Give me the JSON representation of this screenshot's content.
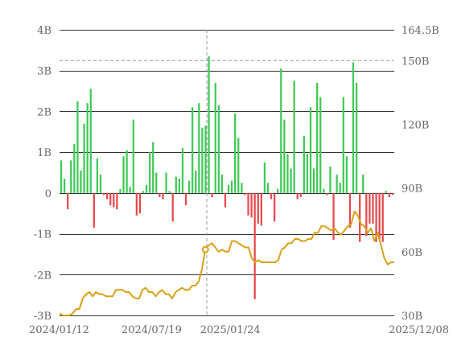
{
  "chart_data": {
    "type": "bar",
    "left_axis": {
      "ticks": [
        -3,
        -2,
        -1,
        0,
        1,
        2,
        3,
        4
      ],
      "tick_labels": [
        "-3B",
        "-2B",
        "-1B",
        "0",
        "1B",
        "2B",
        "3B",
        "4B"
      ],
      "ylim": [
        -3,
        4
      ]
    },
    "right_axis": {
      "ticks": [
        30,
        60,
        90,
        120,
        150,
        164.5
      ],
      "tick_labels": [
        "30B",
        "60B",
        "90B",
        "120B",
        "150B",
        "164.5B"
      ],
      "ylim": [
        30,
        164.5
      ]
    },
    "x_axis": {
      "tick_labels": [
        "2024/01/12",
        "2024/07/19",
        "2025/01/24",
        "2025/12/08"
      ],
      "tick_positions": [
        0,
        0.275,
        0.51,
        1.0
      ]
    },
    "crosshair": {
      "x_fraction": 0.44,
      "right_value": 150
    },
    "colors": {
      "positive": "#3ec955",
      "negative": "#e8484a",
      "line": "#daa01a",
      "grid": "#333333",
      "crosshair": "#999999",
      "tick_text": "#666666"
    },
    "bars": [
      0.8,
      0.35,
      -0.4,
      0.8,
      1.2,
      2.25,
      0.55,
      1.7,
      2.2,
      2.55,
      -0.85,
      0.85,
      0.45,
      -0.05,
      -0.15,
      -0.3,
      -0.35,
      -0.4,
      0.1,
      0.9,
      1.05,
      0.15,
      1.8,
      -0.55,
      -0.5,
      0.05,
      0.2,
      1.0,
      1.25,
      0.5,
      -0.1,
      -0.15,
      0.5,
      0.05,
      -0.7,
      0.4,
      0.35,
      1.1,
      -0.3,
      0.3,
      2.1,
      0.55,
      2.2,
      1.6,
      1.65,
      3.35,
      -0.1,
      2.7,
      2.15,
      0.45,
      -0.35,
      0.2,
      0.3,
      1.95,
      1.35,
      0.25,
      -0.05,
      -0.55,
      -0.6,
      -2.6,
      -0.75,
      -0.8,
      0.75,
      0.25,
      -0.15,
      -0.7,
      0.1,
      3.05,
      1.8,
      0.95,
      0.6,
      2.75,
      -0.15,
      -0.1,
      1.4,
      0.95,
      2.1,
      0.6,
      2.7,
      2.35,
      0.1,
      -0.05,
      0.65,
      -1.15,
      0.45,
      0.25,
      2.35,
      0.9,
      -0.85,
      3.2,
      2.7,
      -1.2,
      0.45,
      -1.05,
      -0.75,
      -0.75,
      -1.2,
      -1.15,
      -1.2,
      0.05,
      -0.1,
      -0.05
    ],
    "line": [
      31,
      30,
      30,
      30,
      31,
      33,
      33,
      38,
      40,
      41,
      39,
      41,
      40,
      40,
      39,
      39,
      39,
      42,
      42,
      42,
      41,
      41,
      39,
      38,
      38,
      42,
      43,
      41,
      41,
      39,
      41,
      42,
      40,
      40,
      38,
      41,
      42,
      43,
      42,
      42,
      44,
      44,
      46,
      52,
      61,
      63,
      64,
      62,
      60,
      61,
      60,
      60,
      65,
      65,
      64,
      63,
      62,
      62,
      57,
      55,
      56,
      55,
      55,
      55,
      55,
      55,
      56,
      61,
      62,
      64,
      64,
      66,
      66,
      65,
      65,
      66,
      66,
      69,
      69,
      72,
      72,
      71,
      70,
      71,
      69,
      68,
      70,
      72,
      73,
      79,
      77,
      73,
      72,
      69,
      71,
      65,
      69,
      63,
      57,
      54,
      55,
      55
    ]
  }
}
